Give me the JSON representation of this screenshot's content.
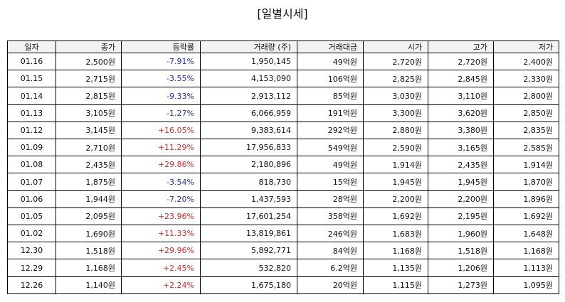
{
  "title": "[일별시세]",
  "table": {
    "headers": [
      "일자",
      "종가",
      "등락률",
      "거래량 (주)",
      "거래대금",
      "시가",
      "고가",
      "저가"
    ],
    "rows": [
      [
        "01.16",
        "2,500원",
        "-7.91%",
        "1,950,145",
        "49억원",
        "2,720원",
        "2,720원",
        "2,400원"
      ],
      [
        "01.15",
        "2,715원",
        "-3.55%",
        "4,153,090",
        "106억원",
        "2,825원",
        "2,845원",
        "2,330원"
      ],
      [
        "01.14",
        "2,815원",
        "-9.33%",
        "2,913,112",
        "85억원",
        "3,030원",
        "3,110원",
        "2,800원"
      ],
      [
        "01.13",
        "3,105원",
        "-1.27%",
        "6,066,959",
        "191억원",
        "3,300원",
        "3,620원",
        "2,850원"
      ],
      [
        "01.12",
        "3,145원",
        "+16.05%",
        "9,383,614",
        "292억원",
        "2,880원",
        "3,380원",
        "2,835원"
      ],
      [
        "01.09",
        "2,710원",
        "+11.29%",
        "17,956,833",
        "549억원",
        "2,590원",
        "3,165원",
        "2,585원"
      ],
      [
        "01.08",
        "2,435원",
        "+29.86%",
        "2,180,896",
        "49억원",
        "1,914원",
        "2,435원",
        "1,914원"
      ],
      [
        "01.07",
        "1,875원",
        "-3.54%",
        "818,730",
        "15억원",
        "1,945원",
        "1,945원",
        "1,870원"
      ],
      [
        "01.06",
        "1,944원",
        "-7.20%",
        "1,437,593",
        "28억원",
        "2,200원",
        "2,200원",
        "1,896원"
      ],
      [
        "01.05",
        "2,095원",
        "+23.96%",
        "17,601,254",
        "358억원",
        "1,692원",
        "2,195원",
        "1,692원"
      ],
      [
        "01.02",
        "1,690원",
        "+11.33%",
        "13,819,861",
        "246억원",
        "1,683원",
        "1,960원",
        "1,648원"
      ],
      [
        "12.30",
        "1,518원",
        "+29.96%",
        "5,892,771",
        "84억원",
        "1,168원",
        "1,518원",
        "1,168원"
      ],
      [
        "12.29",
        "1,168원",
        "+2.45%",
        "532,820",
        "6.2억원",
        "1,135원",
        "1,206원",
        "1,113원"
      ],
      [
        "12.26",
        "1,140원",
        "+2.24%",
        "1,675,180",
        "20억원",
        "1,115원",
        "1,273원",
        "1,095원"
      ]
    ]
  }
}
